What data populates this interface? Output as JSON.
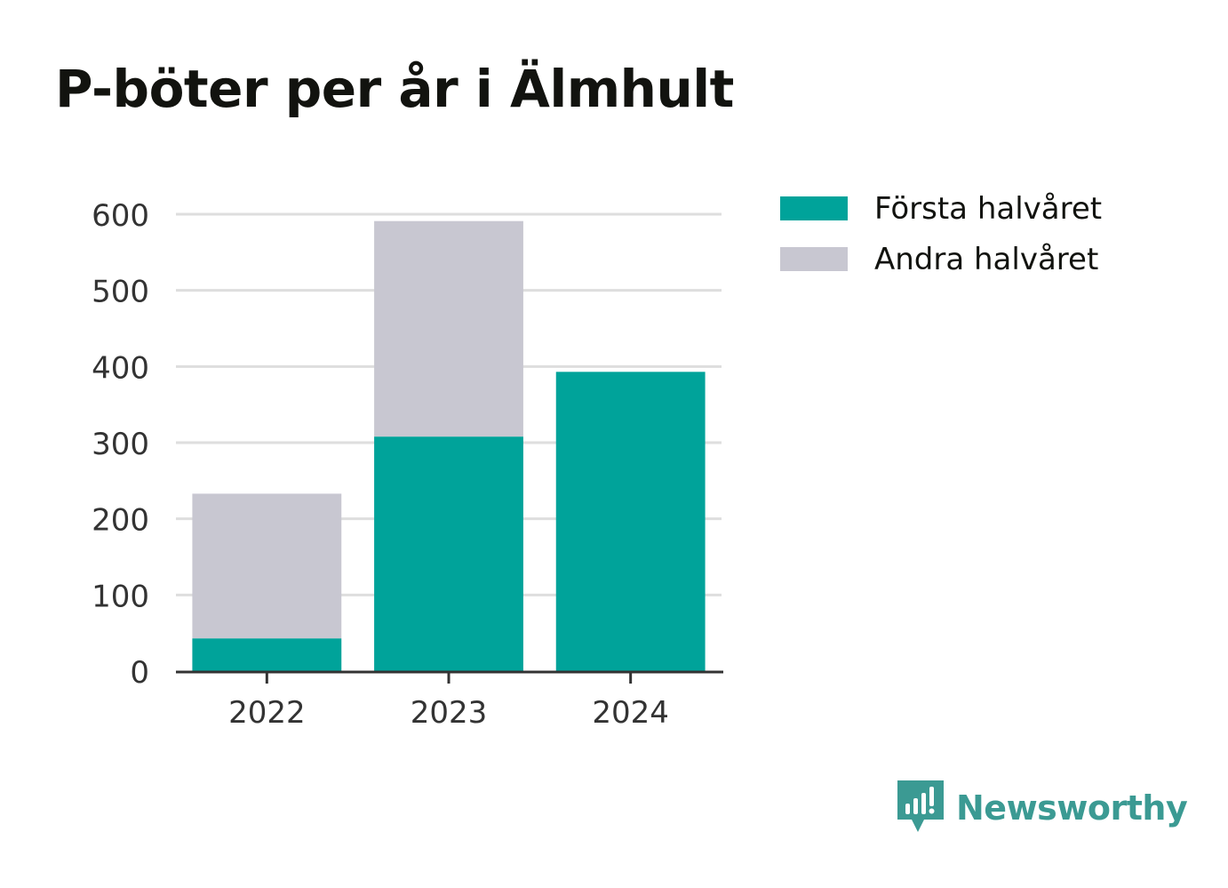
{
  "title": "P-böter per år i Älmhult",
  "legend": [
    {
      "label": "Första halvåret",
      "color": "#00a39a"
    },
    {
      "label": "Andra halvåret",
      "color": "#c8c7d1"
    }
  ],
  "brand": {
    "name": "Newsworthy",
    "icon": "newsworthy-logo-icon",
    "color": "#3b9a93"
  },
  "chart_data": {
    "type": "bar",
    "stacked": true,
    "categories": [
      "2022",
      "2023",
      "2024"
    ],
    "series": [
      {
        "name": "Första halvåret",
        "color": "#00a39a",
        "values": [
          43,
          308,
          393
        ]
      },
      {
        "name": "Andra halvåret",
        "color": "#c8c7d1",
        "values": [
          190,
          283,
          0
        ]
      }
    ],
    "yticks": [
      0,
      100,
      200,
      300,
      400,
      500,
      600
    ],
    "ylim": [
      0,
      600
    ],
    "grid": true,
    "legend_position": "right"
  }
}
